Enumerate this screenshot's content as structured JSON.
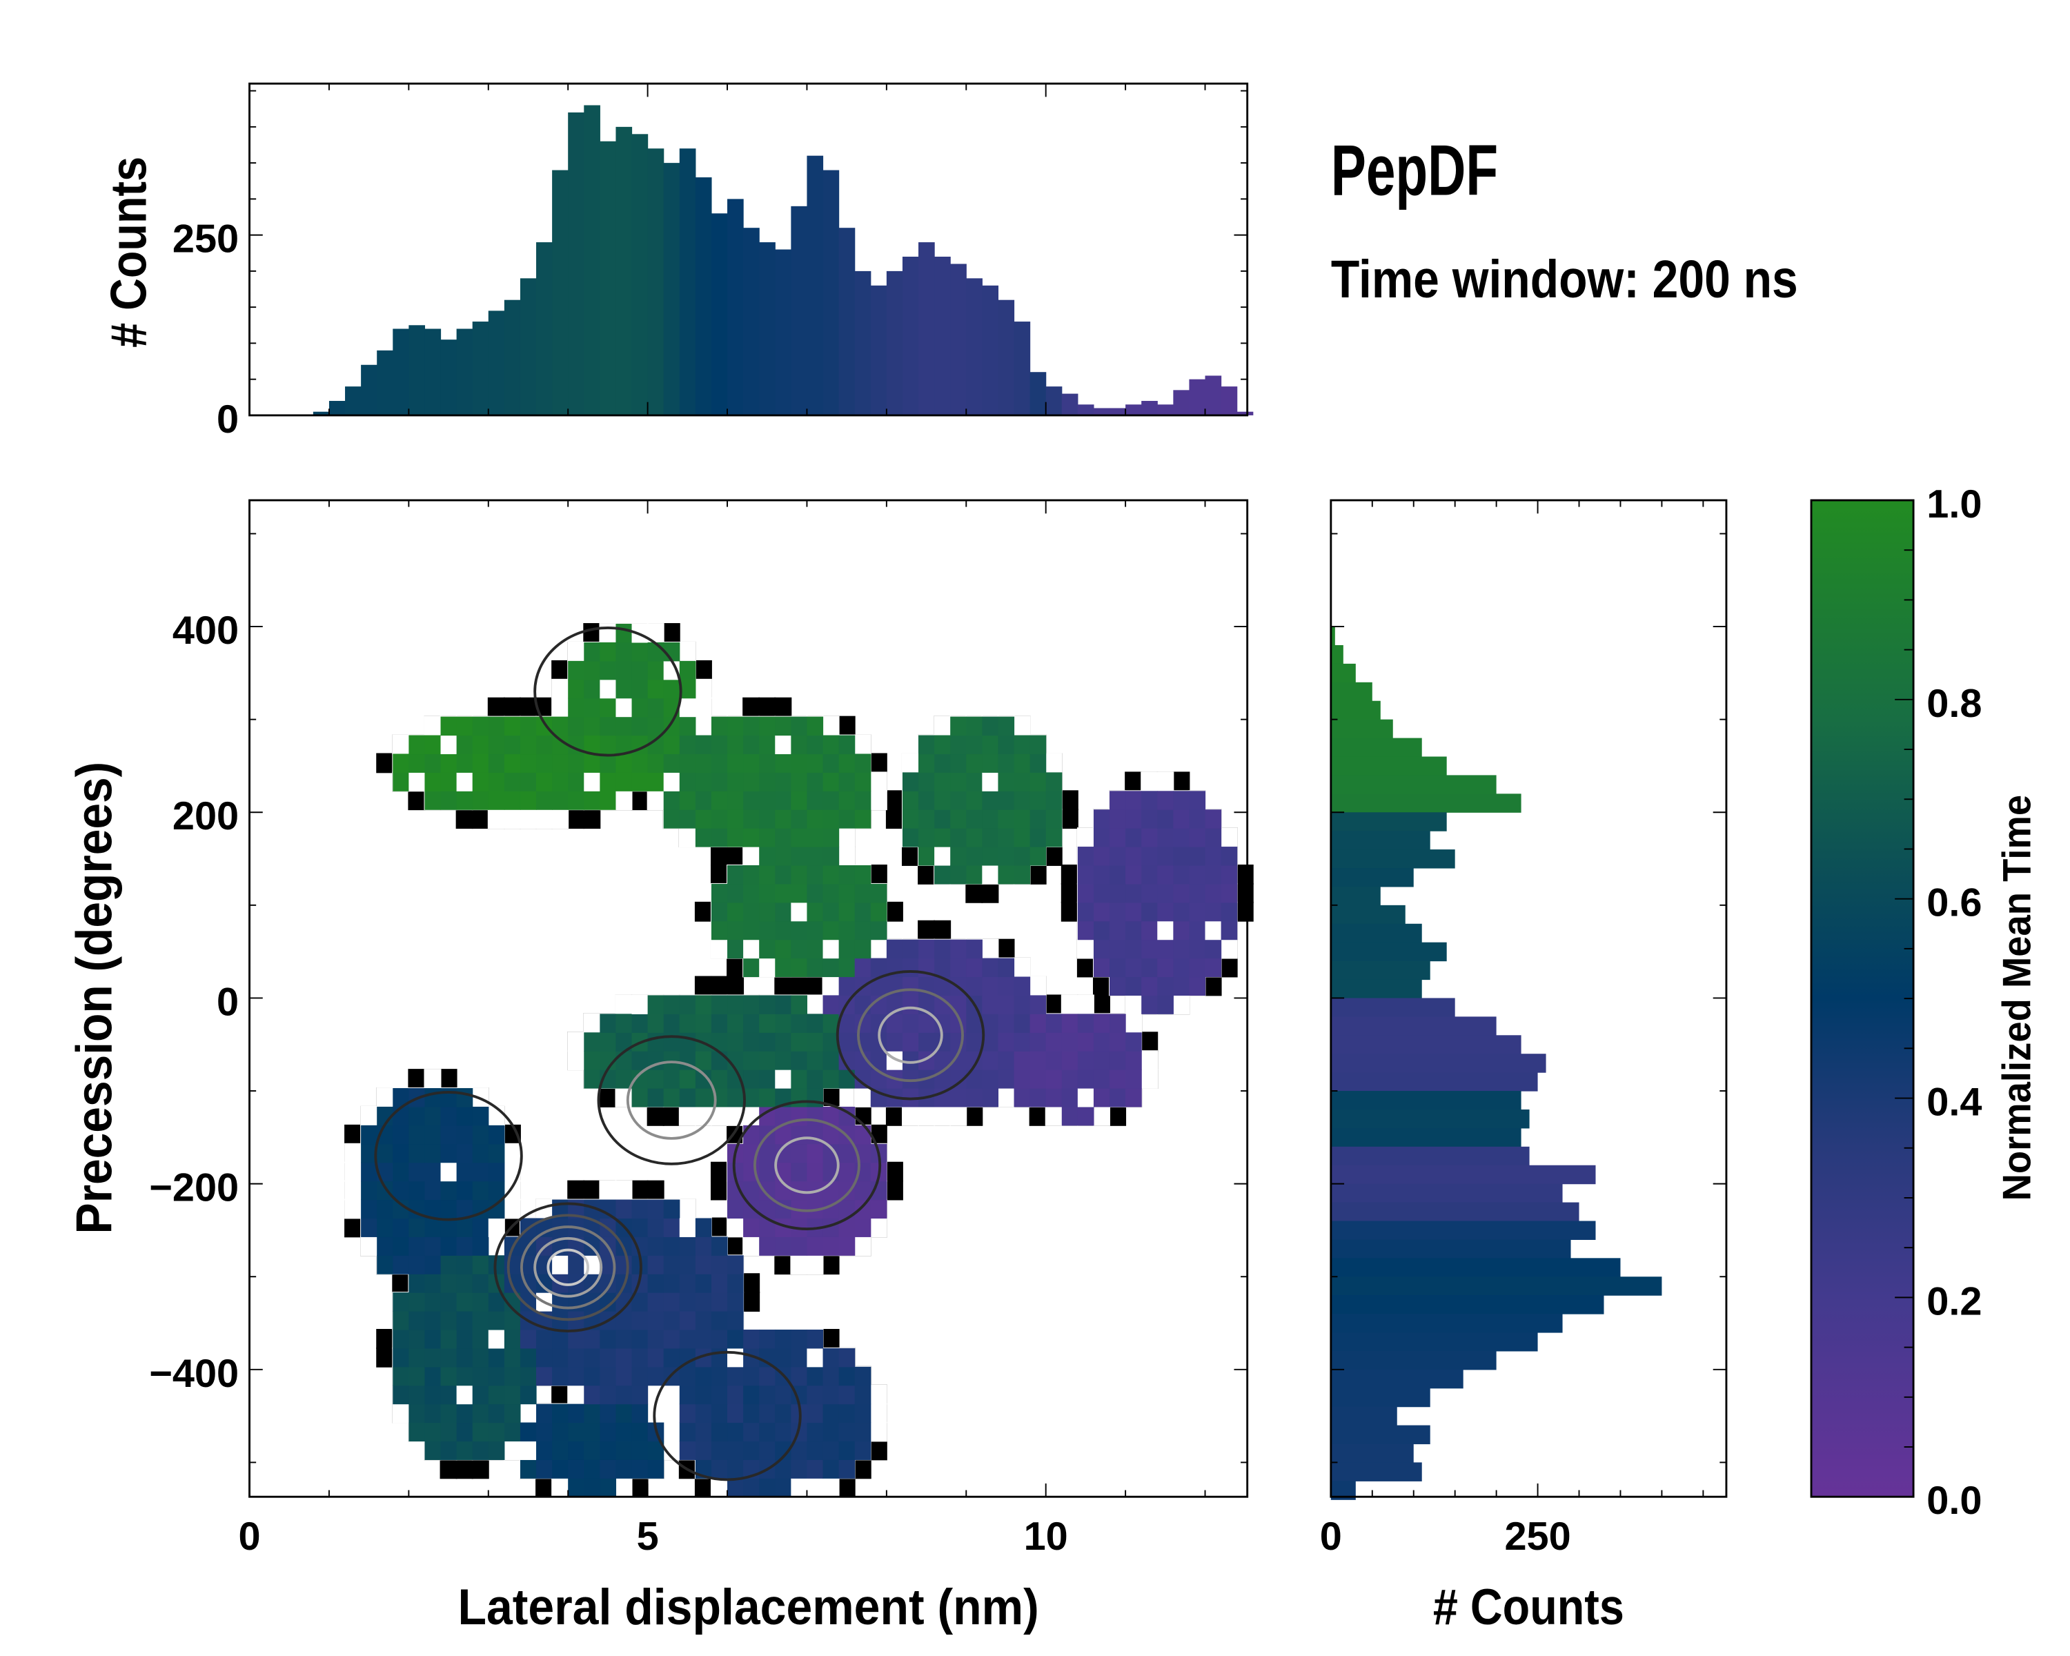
{
  "chart_data": [
    {
      "id": "top_histogram",
      "type": "bar",
      "ylabel": "# Counts",
      "xlim": [
        0,
        12.53
      ],
      "ylim": [
        0,
        460
      ],
      "yticks": [
        "0",
        "250"
      ],
      "ytick_values": [
        0,
        250
      ],
      "bin_start": 0.8,
      "bin_width": 0.2,
      "values": [
        5,
        20,
        40,
        70,
        90,
        120,
        125,
        120,
        105,
        120,
        130,
        145,
        160,
        190,
        240,
        340,
        420,
        430,
        380,
        400,
        390,
        370,
        350,
        370,
        330,
        280,
        300,
        260,
        240,
        230,
        290,
        360,
        340,
        260,
        200,
        180,
        200,
        220,
        240,
        220,
        210,
        190,
        180,
        160,
        130,
        60,
        40,
        30,
        15,
        10,
        10,
        15,
        20,
        15,
        35,
        50,
        55,
        40,
        5
      ],
      "mean_time": [
        0.55,
        0.55,
        0.56,
        0.56,
        0.57,
        0.57,
        0.58,
        0.58,
        0.58,
        0.59,
        0.6,
        0.6,
        0.61,
        0.62,
        0.63,
        0.64,
        0.64,
        0.65,
        0.66,
        0.66,
        0.65,
        0.64,
        0.6,
        0.55,
        0.52,
        0.5,
        0.48,
        0.47,
        0.46,
        0.45,
        0.44,
        0.44,
        0.43,
        0.4,
        0.38,
        0.36,
        0.34,
        0.32,
        0.3,
        0.3,
        0.3,
        0.31,
        0.32,
        0.33,
        0.35,
        0.4,
        0.35,
        0.25,
        0.2,
        0.18,
        0.16,
        0.15,
        0.15,
        0.14,
        0.14,
        0.13,
        0.13,
        0.12,
        0.12
      ]
    },
    {
      "id": "main_heatmap",
      "type": "heatmap",
      "xlabel": "Lateral displacement (nm)",
      "ylabel": "Precession (degrees)",
      "xlim": [
        0,
        12.53
      ],
      "ylim": [
        -537,
        536
      ],
      "xticks": [
        "0",
        "5",
        "10"
      ],
      "xtick_values": [
        0,
        5,
        10
      ],
      "yticks": [
        "400",
        "200",
        "0",
        "−200",
        "−400"
      ],
      "ytick_values": [
        400,
        200,
        0,
        -200,
        -400
      ],
      "cell_nm": 0.2,
      "cell_deg": 20,
      "regions": [
        {
          "cx": 3.5,
          "cy": 250,
          "rx": 1.7,
          "ry": 55,
          "value": 0.97
        },
        {
          "cx": 4.8,
          "cy": 320,
          "rx": 0.9,
          "ry": 75,
          "value": 0.93
        },
        {
          "cx": 6.5,
          "cy": 230,
          "rx": 1.4,
          "ry": 75,
          "value": 0.86
        },
        {
          "cx": 9.2,
          "cy": 210,
          "rx": 1.0,
          "ry": 90,
          "value": 0.78
        },
        {
          "cx": 6.9,
          "cy": 90,
          "rx": 1.1,
          "ry": 70,
          "value": 0.83
        },
        {
          "cx": 5.9,
          "cy": -60,
          "rx": 1.8,
          "ry": 65,
          "value": 0.72
        },
        {
          "cx": 8.6,
          "cy": -30,
          "rx": 1.4,
          "ry": 95,
          "value": 0.22
        },
        {
          "cx": 11.4,
          "cy": 110,
          "rx": 1.0,
          "ry": 120,
          "value": 0.2
        },
        {
          "cx": 10.4,
          "cy": -70,
          "rx": 0.9,
          "ry": 60,
          "value": 0.15
        },
        {
          "cx": 7.0,
          "cy": -200,
          "rx": 1.0,
          "ry": 85,
          "value": 0.1
        },
        {
          "cx": 2.3,
          "cy": -200,
          "rx": 1.0,
          "ry": 110,
          "value": 0.5
        },
        {
          "cx": 2.7,
          "cy": -380,
          "rx": 0.9,
          "ry": 120,
          "value": 0.62
        },
        {
          "cx": 4.6,
          "cy": -320,
          "rx": 1.6,
          "ry": 110,
          "value": 0.4
        },
        {
          "cx": 6.6,
          "cy": -450,
          "rx": 1.3,
          "ry": 90,
          "value": 0.42
        },
        {
          "cx": 4.3,
          "cy": -480,
          "rx": 1.0,
          "ry": 50,
          "value": 0.5
        }
      ],
      "density_peaks": [
        {
          "cx": 4.0,
          "cy": -290,
          "levels": 5
        },
        {
          "cx": 8.3,
          "cy": -40,
          "levels": 3
        },
        {
          "cx": 7.0,
          "cy": -180,
          "levels": 3
        },
        {
          "cx": 2.5,
          "cy": -170,
          "levels": 1
        },
        {
          "cx": 5.3,
          "cy": -110,
          "levels": 2
        },
        {
          "cx": 4.5,
          "cy": 330,
          "levels": 1
        },
        {
          "cx": 6.0,
          "cy": -450,
          "levels": 1
        }
      ]
    },
    {
      "id": "right_histogram",
      "type": "bar",
      "orientation": "horizontal",
      "xlabel": "# Counts",
      "xlim": [
        0,
        478
      ],
      "xticks": [
        "0",
        "250"
      ],
      "xtick_values": [
        0,
        250
      ],
      "bin_start": 400,
      "bin_step": -20,
      "values": [
        5,
        15,
        30,
        50,
        60,
        75,
        110,
        140,
        200,
        230,
        140,
        120,
        150,
        100,
        60,
        90,
        110,
        140,
        120,
        110,
        150,
        200,
        230,
        260,
        250,
        230,
        240,
        230,
        240,
        320,
        280,
        300,
        320,
        290,
        350,
        400,
        330,
        280,
        250,
        200,
        160,
        120,
        80,
        120,
        100,
        110,
        30
      ],
      "mean_time": [
        0.95,
        0.94,
        0.93,
        0.92,
        0.92,
        0.91,
        0.9,
        0.9,
        0.89,
        0.88,
        0.62,
        0.6,
        0.6,
        0.58,
        0.6,
        0.6,
        0.58,
        0.58,
        0.6,
        0.6,
        0.3,
        0.28,
        0.28,
        0.29,
        0.3,
        0.55,
        0.56,
        0.55,
        0.3,
        0.28,
        0.3,
        0.33,
        0.45,
        0.47,
        0.5,
        0.52,
        0.5,
        0.48,
        0.47,
        0.46,
        0.45,
        0.45,
        0.44,
        0.44,
        0.43,
        0.43,
        0.45
      ]
    },
    {
      "id": "colorbar",
      "type": "colorbar",
      "label": "Normalized Mean Time",
      "range": [
        0,
        1
      ],
      "ticks": [
        "0.0",
        "0.2",
        "0.4",
        "0.6",
        "0.8",
        "1.0"
      ],
      "tick_values": [
        0,
        0.2,
        0.4,
        0.6,
        0.8,
        1.0
      ],
      "colormap": [
        {
          "v": 0.0,
          "c": "#663399"
        },
        {
          "v": 0.2,
          "c": "#433a8e"
        },
        {
          "v": 0.35,
          "c": "#283a7c"
        },
        {
          "v": 0.5,
          "c": "#003a68"
        },
        {
          "v": 0.62,
          "c": "#0b4d58"
        },
        {
          "v": 0.78,
          "c": "#186e43"
        },
        {
          "v": 1.0,
          "c": "#228b22"
        }
      ]
    }
  ],
  "title": "PepDF",
  "subtitle": "Time window: 200 ns"
}
